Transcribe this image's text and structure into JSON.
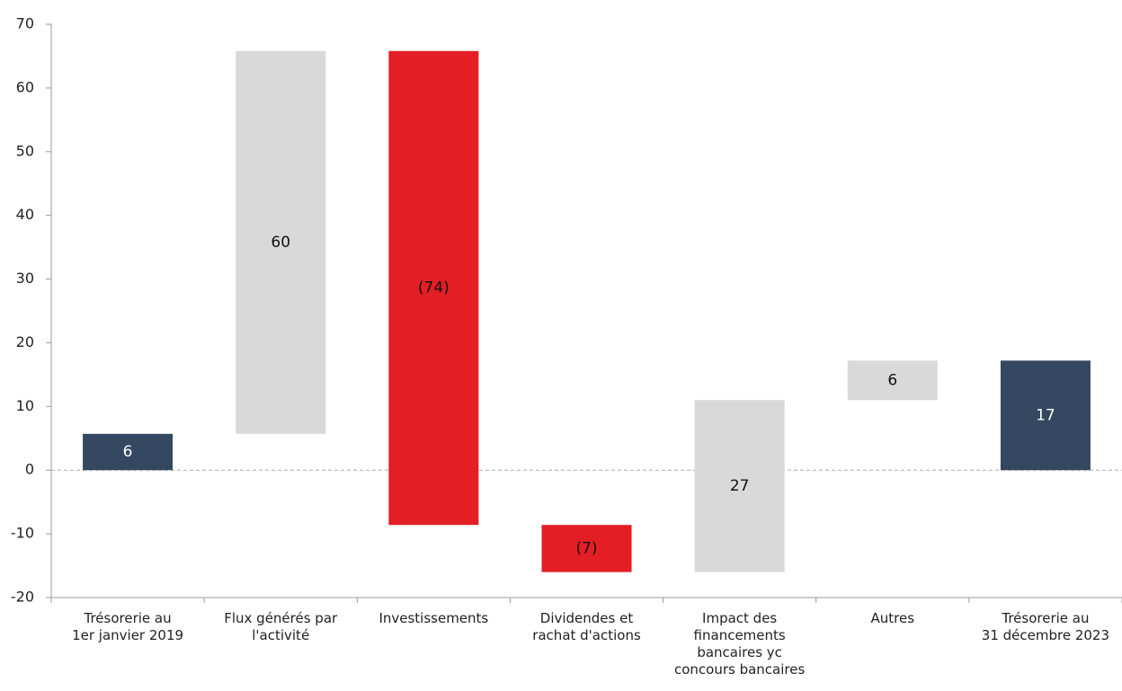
{
  "chart_data": {
    "type": "waterfall",
    "categories": [
      "Trésorerie au\n1er janvier 2019",
      "Flux générés par\nl'activité",
      "Investissements",
      "Dividendes et\nrachat d'actions",
      "Impact des\nfinancements\nbancaires yc\nconcours bancaires",
      "Autres",
      "Trésorerie au\n31 décembre 2023"
    ],
    "measure": [
      "absolute",
      "relative",
      "relative",
      "relative",
      "relative",
      "relative",
      "total"
    ],
    "values": [
      5.7,
      60.1,
      -74.4,
      -7.4,
      27.0,
      6.2,
      17.2
    ],
    "value_labels": [
      "6",
      "60",
      "(74)",
      "(7)",
      "27",
      "6",
      "17"
    ],
    "colors": {
      "total": "#344861",
      "increase": "#d9d9d9",
      "decrease": "#e31e24"
    },
    "ylim": [
      -20,
      70
    ],
    "yticks": [
      -20,
      -10,
      0,
      10,
      20,
      30,
      40,
      50,
      60,
      70
    ]
  }
}
